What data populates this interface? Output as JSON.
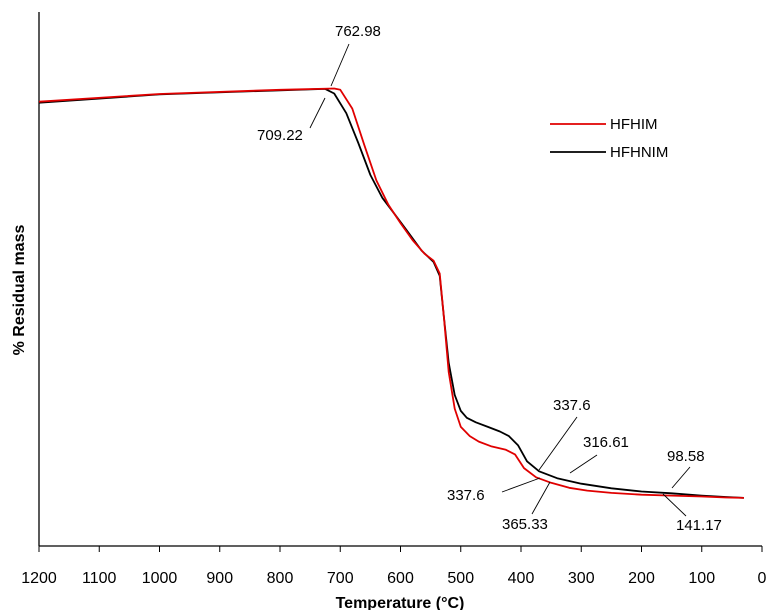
{
  "chart_data": {
    "type": "line",
    "xlabel": "Temperature (°C)",
    "ylabel": "% Residual mass",
    "xlim": [
      1200,
      0
    ],
    "x_reversed": true,
    "x_ticks": [
      "1200",
      "1100",
      "1000",
      "900",
      "800",
      "700",
      "600",
      "500",
      "400",
      "300",
      "200",
      "100",
      "0"
    ],
    "y_ticks_shown": false,
    "grid": false,
    "legend_position": "top-right",
    "series": [
      {
        "name": "HFHIM",
        "color": "#e00000",
        "points": [
          [
            1200,
            97.0
          ],
          [
            1000,
            98.7
          ],
          [
            800,
            99.6
          ],
          [
            710,
            99.9
          ],
          [
            700,
            99.6
          ],
          [
            680,
            95.5
          ],
          [
            660,
            87.5
          ],
          [
            640,
            79.8
          ],
          [
            620,
            74.5
          ],
          [
            600,
            70.5
          ],
          [
            580,
            66.8
          ],
          [
            560,
            63.8
          ],
          [
            545,
            62.3
          ],
          [
            535,
            59.5
          ],
          [
            528,
            50.0
          ],
          [
            520,
            38.0
          ],
          [
            510,
            30.0
          ],
          [
            500,
            26.0
          ],
          [
            485,
            24.0
          ],
          [
            470,
            22.8
          ],
          [
            450,
            21.8
          ],
          [
            425,
            21.0
          ],
          [
            410,
            20.0
          ],
          [
            395,
            17.0
          ],
          [
            375,
            15.0
          ],
          [
            350,
            13.8
          ],
          [
            320,
            12.7
          ],
          [
            290,
            12.1
          ],
          [
            250,
            11.6
          ],
          [
            200,
            11.2
          ],
          [
            150,
            11.0
          ],
          [
            100,
            10.8
          ],
          [
            60,
            10.6
          ],
          [
            30,
            10.5
          ]
        ]
      },
      {
        "name": "HFHNIM",
        "color": "#000000",
        "points": [
          [
            1200,
            96.8
          ],
          [
            1000,
            98.6
          ],
          [
            800,
            99.5
          ],
          [
            725,
            99.8
          ],
          [
            710,
            98.8
          ],
          [
            690,
            94.5
          ],
          [
            670,
            88.0
          ],
          [
            650,
            81.0
          ],
          [
            630,
            76.0
          ],
          [
            610,
            72.5
          ],
          [
            590,
            69.0
          ],
          [
            565,
            64.5
          ],
          [
            545,
            62.0
          ],
          [
            535,
            59.0
          ],
          [
            528,
            50.0
          ],
          [
            520,
            40.0
          ],
          [
            510,
            33.0
          ],
          [
            500,
            29.5
          ],
          [
            490,
            28.0
          ],
          [
            475,
            27.0
          ],
          [
            455,
            26.0
          ],
          [
            435,
            25.0
          ],
          [
            420,
            24.0
          ],
          [
            405,
            22.0
          ],
          [
            390,
            18.5
          ],
          [
            370,
            16.3
          ],
          [
            340,
            14.8
          ],
          [
            300,
            13.6
          ],
          [
            250,
            12.6
          ],
          [
            200,
            11.9
          ],
          [
            150,
            11.5
          ],
          [
            100,
            11.0
          ],
          [
            60,
            10.7
          ],
          [
            30,
            10.5
          ]
        ]
      }
    ],
    "annotations": [
      {
        "text": "762.98",
        "anchor_x": 712
      },
      {
        "text": "709.22",
        "anchor_x": 728
      },
      {
        "text": "337.6",
        "anchor_x": 355
      },
      {
        "text": "316.61",
        "anchor_x": 310
      },
      {
        "text": "98.58",
        "anchor_x": 95
      },
      {
        "text": "337.6",
        "anchor_x": 360
      },
      {
        "text": "365.33",
        "anchor_x": 318
      },
      {
        "text": "141.17",
        "anchor_x": 165
      }
    ]
  }
}
